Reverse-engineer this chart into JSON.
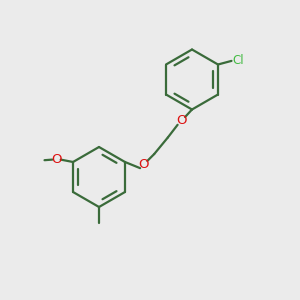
{
  "bg": "#ebebeb",
  "bond_color": "#3a6b3a",
  "o_color": "#dd1111",
  "cl_color": "#44bb44",
  "lw": 1.6,
  "ring_r": 1.0,
  "figsize": [
    3.0,
    3.0
  ],
  "dpi": 100,
  "xlim": [
    0,
    10
  ],
  "ylim": [
    0,
    10
  ]
}
